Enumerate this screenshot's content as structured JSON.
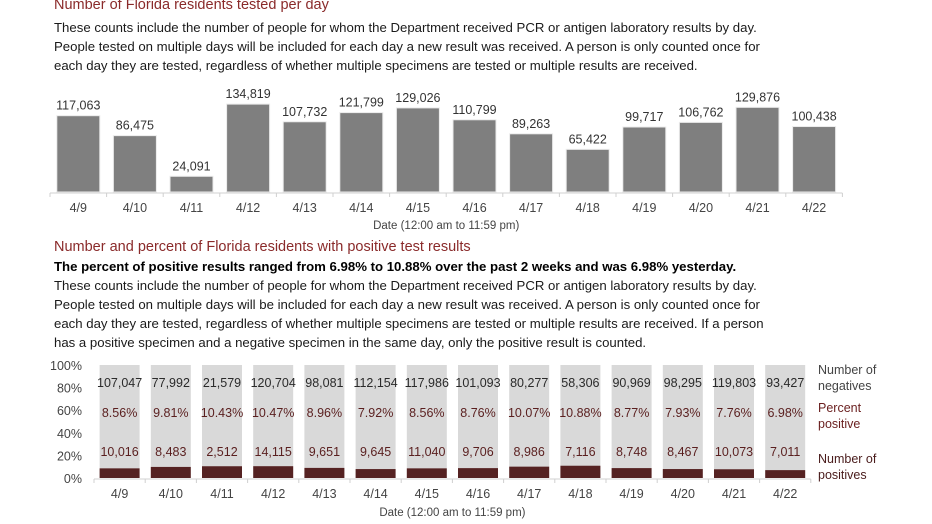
{
  "section1": {
    "title": "Number of Florida residents tested per day",
    "description": [
      "These counts include the number of people for whom the Department received PCR or antigen laboratory results by day.",
      "People tested on multiple days will be included for each day a new result was received. A person is only counted once for",
      "each day they are tested, regardless of whether multiple specimens are tested or multiple results are received."
    ]
  },
  "section2": {
    "title": "Number and percent of Florida residents with positive test results",
    "summary": "The percent of positive results ranged from 6.98% to 10.88% over the past 2 weeks and was 6.98% yesterday.",
    "description": [
      "These counts include the number of people for whom the Department received PCR or antigen laboratory results by day.",
      "People tested on multiple days will be included for each day a new result was received. A person is only counted once for",
      "each day they are tested, regardless of whether multiple specimens are tested or multiple results are received. If a person",
      "has a positive specimen and a negative specimen in the same day, only the positive result is counted."
    ]
  },
  "colors": {
    "title": "#8a2a2a",
    "tested_bar": "#7f7f7f",
    "negatives_bar": "#d9d9d9",
    "positives_bar": "#552222",
    "percent_label": "#5a1f1f"
  },
  "chart_data": [
    {
      "type": "bar",
      "title": "Number of Florida residents tested per day",
      "xlabel": "Date (12:00 am to 11:59 pm)",
      "ylabel": "",
      "categories": [
        "4/9",
        "4/10",
        "4/11",
        "4/12",
        "4/13",
        "4/14",
        "4/15",
        "4/16",
        "4/17",
        "4/18",
        "4/19",
        "4/20",
        "4/21",
        "4/22"
      ],
      "values": [
        117063,
        86475,
        24091,
        134819,
        107732,
        121799,
        129026,
        110799,
        89263,
        65422,
        99717,
        106762,
        129876,
        100438
      ],
      "value_labels": [
        "117,063",
        "86,475",
        "24,091",
        "134,819",
        "107,732",
        "121,799",
        "129,026",
        "110,799",
        "89,263",
        "65,422",
        "99,717",
        "106,762",
        "129,876",
        "100,438"
      ],
      "ylim": [
        0,
        135000
      ],
      "grid": false,
      "legend": "none"
    },
    {
      "type": "bar",
      "stacked": "percent",
      "title": "Number and percent of Florida residents with positive test results",
      "xlabel": "Date (12:00 am to 11:59 pm)",
      "ylabel": "",
      "categories": [
        "4/9",
        "4/10",
        "4/11",
        "4/12",
        "4/13",
        "4/14",
        "4/15",
        "4/16",
        "4/17",
        "4/18",
        "4/19",
        "4/20",
        "4/21",
        "4/22"
      ],
      "yticks": [
        "0%",
        "20%",
        "40%",
        "60%",
        "80%",
        "100%"
      ],
      "ylim": [
        0,
        100
      ],
      "series": [
        {
          "name": "Number of positives",
          "values": [
            10016,
            8483,
            2512,
            14115,
            9651,
            9645,
            11040,
            9706,
            8986,
            7116,
            8748,
            8467,
            10073,
            7011
          ],
          "labels": [
            "10,016",
            "8,483",
            "2,512",
            "14,115",
            "9,651",
            "9,645",
            "11,040",
            "9,706",
            "8,986",
            "7,116",
            "8,748",
            "8,467",
            "10,073",
            "7,011"
          ]
        },
        {
          "name": "Number of negatives",
          "values": [
            107047,
            77992,
            21579,
            120704,
            98081,
            112154,
            117986,
            101093,
            80277,
            58306,
            90969,
            98295,
            119803,
            93427
          ],
          "labels": [
            "107,047",
            "77,992",
            "21,579",
            "120,704",
            "98,081",
            "112,154",
            "117,986",
            "101,093",
            "80,277",
            "58,306",
            "90,969",
            "98,295",
            "119,803",
            "93,427"
          ]
        }
      ],
      "percent_positive": [
        8.56,
        9.81,
        10.43,
        10.47,
        8.96,
        7.92,
        8.56,
        8.76,
        10.07,
        10.88,
        8.77,
        7.93,
        7.76,
        6.98
      ],
      "percent_positive_labels": [
        "8.56%",
        "9.81%",
        "10.43%",
        "10.47%",
        "8.96%",
        "7.92%",
        "8.56%",
        "8.76%",
        "10.07%",
        "10.88%",
        "8.77%",
        "7.93%",
        "7.76%",
        "6.98%"
      ],
      "legend_entries": [
        {
          "line1": "Number of",
          "line2": "negatives"
        },
        {
          "line1": "Percent",
          "line2": "positive"
        },
        {
          "line1": "Number of",
          "line2": "positives"
        }
      ],
      "legend": "right",
      "grid": false
    }
  ]
}
